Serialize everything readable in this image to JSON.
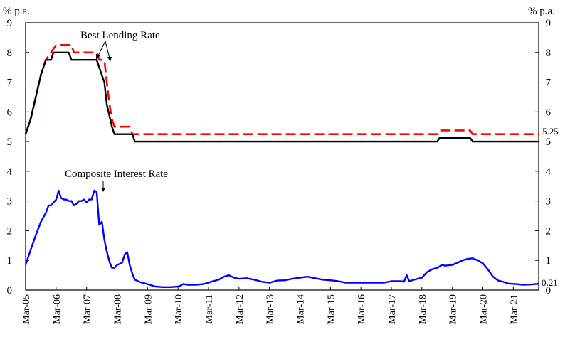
{
  "chart_data": {
    "type": "line",
    "y_unit_left": "% p.a.",
    "y_unit_right": "% p.a.",
    "ylim": [
      0,
      9
    ],
    "yticks": [
      0,
      1,
      2,
      3,
      4,
      5,
      6,
      7,
      8,
      9
    ],
    "xlim": [
      2005.167,
      2022.0
    ],
    "xticks": [
      {
        "label": "Mar-05",
        "x": 2005.167
      },
      {
        "label": "Mar-06",
        "x": 2006.167
      },
      {
        "label": "Mar-07",
        "x": 2007.167
      },
      {
        "label": "Mar-08",
        "x": 2008.167
      },
      {
        "label": "Mar-09",
        "x": 2009.167
      },
      {
        "label": "Mar-10",
        "x": 2010.167
      },
      {
        "label": "Mar-11",
        "x": 2011.167
      },
      {
        "label": "Mar-12",
        "x": 2012.167
      },
      {
        "label": "Mar-13",
        "x": 2013.167
      },
      {
        "label": "Mar-14",
        "x": 2014.167
      },
      {
        "label": "Mar-15",
        "x": 2015.167
      },
      {
        "label": "Mar-16",
        "x": 2016.167
      },
      {
        "label": "Mar-17",
        "x": 2017.167
      },
      {
        "label": "Mar-18",
        "x": 2018.167
      },
      {
        "label": "Mar-19",
        "x": 2019.167
      },
      {
        "label": "Mar-20",
        "x": 2020.167
      },
      {
        "label": "Mar-21",
        "x": 2021.167
      }
    ],
    "grid": false,
    "annotations": [
      {
        "text": "Best Lending Rate"
      },
      {
        "text": "Composite Interest Rate"
      }
    ],
    "end_labels": [
      {
        "text": "5.25",
        "series": 0
      },
      {
        "text": "0.21",
        "series": 2
      }
    ],
    "series": [
      {
        "color": "#ff0000",
        "style": "dashed",
        "points": [
          [
            2005.167,
            5.25
          ],
          [
            2005.33,
            5.75
          ],
          [
            2005.5,
            6.5
          ],
          [
            2005.67,
            7.25
          ],
          [
            2005.83,
            7.75
          ],
          [
            2006.0,
            8.0
          ],
          [
            2006.17,
            8.25
          ],
          [
            2006.67,
            8.25
          ],
          [
            2006.75,
            8.0
          ],
          [
            2007.5,
            8.0
          ],
          [
            2007.58,
            7.75
          ],
          [
            2007.75,
            7.75
          ],
          [
            2007.83,
            7.0
          ],
          [
            2007.92,
            6.25
          ],
          [
            2008.0,
            5.75
          ],
          [
            2008.08,
            5.5
          ],
          [
            2008.58,
            5.5
          ],
          [
            2008.67,
            5.25
          ],
          [
            2018.67,
            5.25
          ],
          [
            2018.75,
            5.375
          ],
          [
            2019.75,
            5.375
          ],
          [
            2019.83,
            5.25
          ],
          [
            2022.0,
            5.25
          ]
        ]
      },
      {
        "color": "#000000",
        "style": "solid",
        "points": [
          [
            2005.167,
            5.25
          ],
          [
            2005.33,
            5.75
          ],
          [
            2005.5,
            6.5
          ],
          [
            2005.67,
            7.25
          ],
          [
            2005.83,
            7.75
          ],
          [
            2006.0,
            7.75
          ],
          [
            2006.08,
            8.0
          ],
          [
            2006.58,
            8.0
          ],
          [
            2006.67,
            7.75
          ],
          [
            2007.5,
            7.75
          ],
          [
            2007.58,
            7.5
          ],
          [
            2007.75,
            7.0
          ],
          [
            2007.83,
            6.25
          ],
          [
            2008.0,
            5.5
          ],
          [
            2008.08,
            5.25
          ],
          [
            2008.67,
            5.25
          ],
          [
            2008.75,
            5.0
          ],
          [
            2018.67,
            5.0
          ],
          [
            2018.75,
            5.125
          ],
          [
            2019.75,
            5.125
          ],
          [
            2019.83,
            5.0
          ],
          [
            2022.0,
            5.0
          ]
        ]
      },
      {
        "color": "#0000ff",
        "style": "solid",
        "points": [
          [
            2005.167,
            0.85
          ],
          [
            2005.33,
            1.35
          ],
          [
            2005.5,
            1.85
          ],
          [
            2005.67,
            2.3
          ],
          [
            2005.83,
            2.6
          ],
          [
            2005.92,
            2.85
          ],
          [
            2006.0,
            2.85
          ],
          [
            2006.08,
            2.95
          ],
          [
            2006.17,
            3.05
          ],
          [
            2006.25,
            3.35
          ],
          [
            2006.33,
            3.1
          ],
          [
            2006.42,
            3.05
          ],
          [
            2006.5,
            3.05
          ],
          [
            2006.58,
            3.0
          ],
          [
            2006.67,
            3.0
          ],
          [
            2006.75,
            2.85
          ],
          [
            2006.83,
            2.9
          ],
          [
            2006.92,
            3.0
          ],
          [
            2007.0,
            3.0
          ],
          [
            2007.08,
            3.05
          ],
          [
            2007.17,
            2.95
          ],
          [
            2007.25,
            3.05
          ],
          [
            2007.33,
            3.05
          ],
          [
            2007.42,
            3.35
          ],
          [
            2007.5,
            3.3
          ],
          [
            2007.58,
            2.2
          ],
          [
            2007.67,
            2.3
          ],
          [
            2007.75,
            1.7
          ],
          [
            2007.83,
            1.3
          ],
          [
            2007.92,
            0.95
          ],
          [
            2008.0,
            0.75
          ],
          [
            2008.08,
            0.75
          ],
          [
            2008.17,
            0.85
          ],
          [
            2008.25,
            0.88
          ],
          [
            2008.33,
            0.92
          ],
          [
            2008.42,
            1.2
          ],
          [
            2008.5,
            1.28
          ],
          [
            2008.58,
            0.85
          ],
          [
            2008.67,
            0.55
          ],
          [
            2008.75,
            0.35
          ],
          [
            2008.92,
            0.27
          ],
          [
            2009.17,
            0.2
          ],
          [
            2009.42,
            0.12
          ],
          [
            2009.67,
            0.1
          ],
          [
            2009.92,
            0.1
          ],
          [
            2010.17,
            0.12
          ],
          [
            2010.25,
            0.15
          ],
          [
            2010.33,
            0.2
          ],
          [
            2010.5,
            0.18
          ],
          [
            2010.75,
            0.18
          ],
          [
            2011.0,
            0.2
          ],
          [
            2011.25,
            0.28
          ],
          [
            2011.5,
            0.35
          ],
          [
            2011.67,
            0.45
          ],
          [
            2011.83,
            0.5
          ],
          [
            2012.0,
            0.42
          ],
          [
            2012.17,
            0.38
          ],
          [
            2012.42,
            0.4
          ],
          [
            2012.67,
            0.35
          ],
          [
            2012.92,
            0.28
          ],
          [
            2013.17,
            0.25
          ],
          [
            2013.42,
            0.32
          ],
          [
            2013.67,
            0.33
          ],
          [
            2013.92,
            0.38
          ],
          [
            2014.17,
            0.42
          ],
          [
            2014.42,
            0.45
          ],
          [
            2014.67,
            0.4
          ],
          [
            2014.92,
            0.35
          ],
          [
            2015.17,
            0.33
          ],
          [
            2015.42,
            0.3
          ],
          [
            2015.67,
            0.25
          ],
          [
            2015.92,
            0.25
          ],
          [
            2016.42,
            0.25
          ],
          [
            2016.92,
            0.25
          ],
          [
            2017.17,
            0.3
          ],
          [
            2017.5,
            0.3
          ],
          [
            2017.58,
            0.28
          ],
          [
            2017.67,
            0.5
          ],
          [
            2017.75,
            0.3
          ],
          [
            2017.92,
            0.35
          ],
          [
            2018.17,
            0.42
          ],
          [
            2018.33,
            0.6
          ],
          [
            2018.5,
            0.7
          ],
          [
            2018.67,
            0.75
          ],
          [
            2018.83,
            0.85
          ],
          [
            2018.92,
            0.82
          ],
          [
            2019.17,
            0.85
          ],
          [
            2019.33,
            0.92
          ],
          [
            2019.5,
            1.0
          ],
          [
            2019.67,
            1.05
          ],
          [
            2019.83,
            1.07
          ],
          [
            2020.0,
            1.0
          ],
          [
            2020.17,
            0.9
          ],
          [
            2020.33,
            0.7
          ],
          [
            2020.5,
            0.45
          ],
          [
            2020.67,
            0.32
          ],
          [
            2020.83,
            0.28
          ],
          [
            2021.0,
            0.22
          ],
          [
            2021.25,
            0.2
          ],
          [
            2021.5,
            0.18
          ],
          [
            2021.75,
            0.19
          ],
          [
            2022.0,
            0.21
          ]
        ]
      }
    ]
  }
}
